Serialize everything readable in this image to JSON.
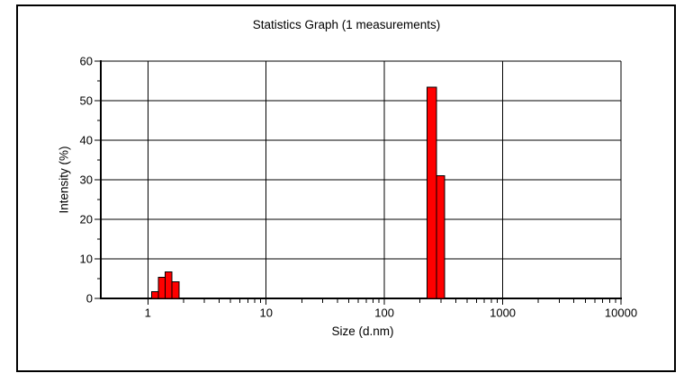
{
  "window": {
    "background_color": "#ffffff",
    "border_color": "#000000",
    "text_color": "#000000"
  },
  "chart_data": {
    "type": "bar",
    "title": "Statistics Graph (1 measurements)",
    "xlabel": "Size (d.nm)",
    "ylabel": "Intensity (%)",
    "x_scale": "log",
    "xlim": [
      0.4,
      10000
    ],
    "ylim": [
      0,
      60
    ],
    "x_major_ticks": [
      1,
      10,
      100,
      1000,
      10000
    ],
    "x_tick_labels": [
      "1",
      "10",
      "100",
      "1000",
      "10000"
    ],
    "y_major_ticks": [
      0,
      10,
      20,
      30,
      40,
      50,
      60
    ],
    "y_tick_labels": [
      "0",
      "10",
      "20",
      "30",
      "40",
      "50",
      "60"
    ],
    "y_minor_step": 5,
    "grid": true,
    "legend": false,
    "bar_color": "#ff0000",
    "bar_outline_color": "#000000",
    "axis_color": "#000000",
    "grid_color": "#000000",
    "bars": [
      {
        "size_min": 1.08,
        "size_max": 1.23,
        "intensity": 1.7
      },
      {
        "size_min": 1.23,
        "size_max": 1.4,
        "intensity": 5.3
      },
      {
        "size_min": 1.4,
        "size_max": 1.6,
        "intensity": 6.7
      },
      {
        "size_min": 1.6,
        "size_max": 1.83,
        "intensity": 4.2
      },
      {
        "size_min": 230,
        "size_max": 276,
        "intensity": 53.4
      },
      {
        "size_min": 276,
        "size_max": 322,
        "intensity": 31.0
      }
    ]
  }
}
